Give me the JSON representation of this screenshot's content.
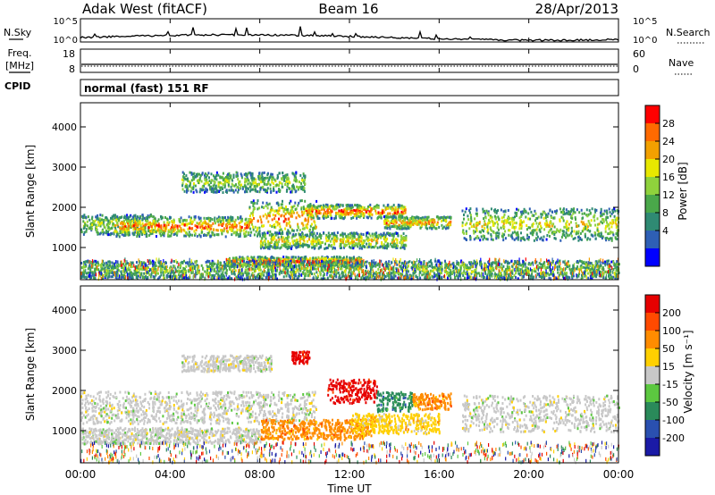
{
  "header": {
    "station": "Adak West (fitACF)",
    "beam": "Beam 16",
    "date": "28/Apr/2013"
  },
  "top_panels": {
    "nsky_label": "N.Sky",
    "nsky_ticks": [
      "10^5",
      "10^0"
    ],
    "nsearch_label": "N.Search",
    "nsearch_ticks": [
      "10^5",
      "10^0"
    ],
    "freq_label": "Freq.",
    "freq_unit": "[MHz]",
    "freq_ticks": [
      "18",
      "8"
    ],
    "nave_label": "Nave",
    "nave_ticks": [
      "60",
      "0"
    ],
    "cpid_label": "CPID",
    "cpid_text": "normal (fast) 151 RF"
  },
  "time_axis": {
    "label": "Time UT",
    "ticks": [
      "00:00",
      "04:00",
      "08:00",
      "12:00",
      "16:00",
      "20:00",
      "00:00"
    ]
  },
  "colors": {
    "power": [
      "#0000ff",
      "#2e5fb5",
      "#2f8a73",
      "#4aa84a",
      "#8fd23c",
      "#e8e800",
      "#f2a000",
      "#ff6a00",
      "#ff0000"
    ],
    "velocity": [
      "#1a1aa6",
      "#2a50b0",
      "#2a8a5a",
      "#5cc840",
      "#c8c8c8",
      "#ffd000",
      "#ff8c00",
      "#ff4a00",
      "#e60000"
    ]
  },
  "chart_data": [
    {
      "type": "heatmap",
      "name": "power-panel",
      "xlabel": "Time UT",
      "ylabel": "Slant Range [km]",
      "xlim": [
        0,
        24
      ],
      "ylim": [
        200,
        4600
      ],
      "yticks": [
        "1000",
        "2000",
        "3000",
        "4000"
      ],
      "colorbar": {
        "label": "Power [dB]",
        "ticks": [
          "28",
          "24",
          "20",
          "16",
          "12",
          "8",
          "4"
        ]
      },
      "bands": [
        {
          "t0": 0,
          "t1": 3.3,
          "r0": 1350,
          "r1": 1850,
          "level": 0.35
        },
        {
          "t0": 1.5,
          "t1": 7.5,
          "r0": 1300,
          "r1": 1800,
          "level": 0.75
        },
        {
          "t0": 7.5,
          "t1": 10.5,
          "r0": 1300,
          "r1": 2200,
          "level": 0.7
        },
        {
          "t0": 10.0,
          "t1": 14.5,
          "r0": 1750,
          "r1": 2100,
          "level": 0.8
        },
        {
          "t0": 13.5,
          "t1": 16.5,
          "r0": 1500,
          "r1": 1800,
          "level": 0.65
        },
        {
          "t0": 8.0,
          "t1": 14.5,
          "r0": 1000,
          "r1": 1400,
          "level": 0.5
        },
        {
          "t0": 6.5,
          "t1": 12.5,
          "r0": 550,
          "r1": 800,
          "level": 0.85
        },
        {
          "t0": 4.5,
          "t1": 10.0,
          "r0": 2400,
          "r1": 2900,
          "level": 0.35
        },
        {
          "t0": 17.0,
          "t1": 24.0,
          "r0": 1200,
          "r1": 2000,
          "level": 0.45
        },
        {
          "t0": 0,
          "t1": 24.0,
          "r0": 250,
          "r1": 700,
          "level": 0.3
        }
      ]
    },
    {
      "type": "heatmap",
      "name": "velocity-panel",
      "xlabel": "Time UT",
      "ylabel": "Slant Range [km]",
      "xlim": [
        0,
        24
      ],
      "ylim": [
        200,
        4600
      ],
      "yticks": [
        "1000",
        "2000",
        "3000",
        "4000"
      ],
      "colorbar": {
        "label": "Velocity [m s⁻¹]",
        "ticks": [
          "200",
          "100",
          "50",
          "15",
          "-15",
          "-50",
          "-100",
          "-200"
        ]
      },
      "bands": [
        {
          "t0": 0,
          "t1": 10.5,
          "r0": 1200,
          "r1": 2000,
          "color_index": 4
        },
        {
          "t0": 11.0,
          "t1": 13.2,
          "r0": 1700,
          "r1": 2300,
          "color_index": 8
        },
        {
          "t0": 13.2,
          "t1": 14.8,
          "r0": 1500,
          "r1": 2000,
          "color_index": 2
        },
        {
          "t0": 14.8,
          "t1": 16.5,
          "r0": 1550,
          "r1": 1950,
          "color_index": 6
        },
        {
          "t0": 8.0,
          "t1": 13.0,
          "r0": 800,
          "r1": 1300,
          "color_index": 6
        },
        {
          "t0": 12.0,
          "t1": 16.0,
          "r0": 950,
          "r1": 1450,
          "color_index": 5
        },
        {
          "t0": 0,
          "t1": 8.0,
          "r0": 700,
          "r1": 1100,
          "color_index": 4
        },
        {
          "t0": 17.0,
          "t1": 24.0,
          "r0": 1000,
          "r1": 1900,
          "color_index": 4
        },
        {
          "t0": 4.5,
          "t1": 8.5,
          "r0": 2500,
          "r1": 2900,
          "color_index": 4
        },
        {
          "t0": 9.4,
          "t1": 10.2,
          "r0": 2700,
          "r1": 3000,
          "color_index": 8
        }
      ]
    }
  ]
}
